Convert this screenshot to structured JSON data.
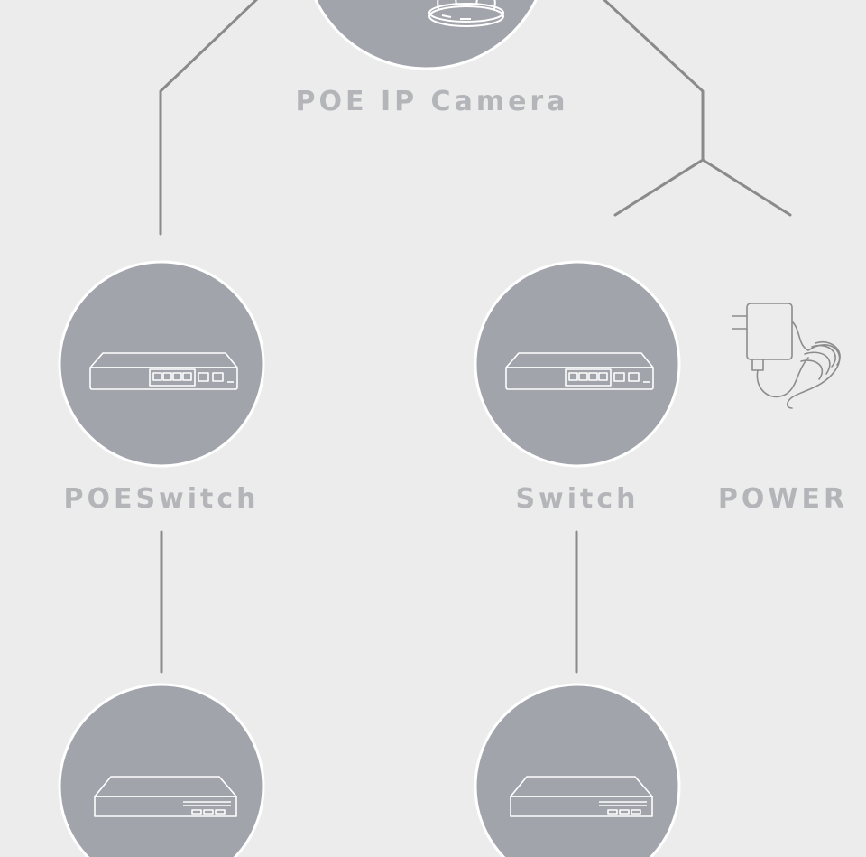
{
  "diagram": {
    "nodes": {
      "camera": {
        "label": "POE IP Camera",
        "icon": "ip-camera-icon"
      },
      "poe_switch": {
        "label": "POESwitch",
        "icon": "network-switch-icon"
      },
      "switch": {
        "label": "Switch",
        "icon": "network-switch-icon"
      },
      "power": {
        "label": "POWER",
        "icon": "power-adapter-icon"
      },
      "nvr_left": {
        "label": "",
        "icon": "nvr-recorder-icon"
      },
      "nvr_right": {
        "label": "",
        "icon": "nvr-recorder-icon"
      }
    },
    "connections": [
      [
        "camera",
        "poe_switch"
      ],
      [
        "camera",
        "switch"
      ],
      [
        "camera",
        "power"
      ],
      [
        "poe_switch",
        "nvr_left"
      ],
      [
        "switch",
        "nvr_right"
      ]
    ],
    "colors": {
      "background": "#ececec",
      "circle_fill": "#a2a4ac",
      "circle_stroke": "#ffffff",
      "line": "#8a8a8a",
      "label": "#b4b5b9"
    }
  }
}
